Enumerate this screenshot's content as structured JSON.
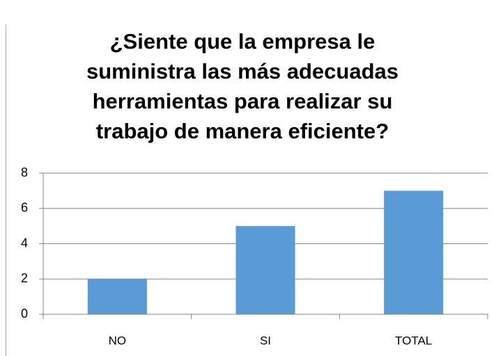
{
  "chart_data": {
    "type": "bar",
    "title": [
      "¿Siente que la empresa le",
      "suministra las más adecuadas",
      "herramientas para realizar su",
      "trabajo de manera eficiente?"
    ],
    "categories": [
      "NO",
      "SI",
      "TOTAL"
    ],
    "values": [
      2,
      5,
      7
    ],
    "color": "#5b9bd5",
    "ylim": [
      0,
      8
    ],
    "yticks": [
      0,
      2,
      4,
      6,
      8
    ],
    "grid": true
  }
}
